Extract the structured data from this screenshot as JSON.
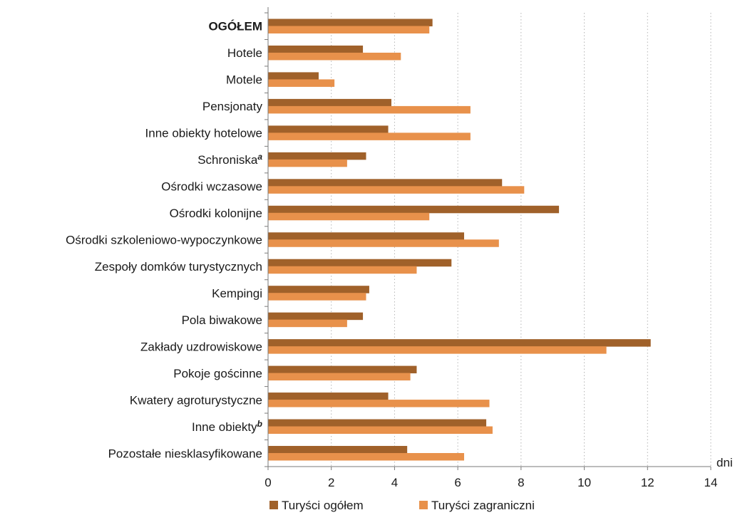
{
  "chart_data": {
    "type": "bar",
    "orientation": "horizontal",
    "categories": [
      "OGÓŁEM",
      "Hotele",
      "Motele",
      "Pensjonaty",
      "Inne obiekty hotelowe",
      "Schroniska",
      "Ośrodki wczasowe",
      "Ośrodki kolonijne",
      "Ośrodki szkoleniowo-wypoczynkowe",
      "Zespoły domków turystycznych",
      "Kempingi",
      "Pola biwakowe",
      "Zakłady uzdrowiskowe",
      "Pokoje gościnne",
      "Kwatery agroturystyczne",
      "Inne obiekty",
      "Pozostałe niesklasyfikowane"
    ],
    "category_superscripts": [
      "",
      "",
      "",
      "",
      "",
      "a",
      "",
      "",
      "",
      "",
      "",
      "",
      "",
      "",
      "",
      "b",
      ""
    ],
    "bold_categories": [
      "OGÓŁEM"
    ],
    "series": [
      {
        "name": "Turyści ogółem",
        "color": "#a0612a",
        "values": [
          5.2,
          3.0,
          1.6,
          3.9,
          3.8,
          3.1,
          7.4,
          9.2,
          6.2,
          5.8,
          3.2,
          3.0,
          12.1,
          4.7,
          3.8,
          6.9,
          4.4
        ]
      },
      {
        "name": "Turyści zagraniczni",
        "color": "#e8914b",
        "values": [
          5.1,
          4.2,
          2.1,
          6.4,
          6.4,
          2.5,
          8.1,
          5.1,
          7.3,
          4.7,
          3.1,
          2.5,
          10.7,
          4.5,
          7.0,
          7.1,
          6.2
        ]
      }
    ],
    "xlim": [
      0,
      14
    ],
    "x_ticks": [
      0,
      2,
      4,
      6,
      8,
      10,
      12,
      14
    ],
    "x_unit": "dni",
    "xlabel": "",
    "ylabel": "",
    "title": "",
    "grid": "vertical dotted",
    "legend_position": "bottom-center"
  }
}
